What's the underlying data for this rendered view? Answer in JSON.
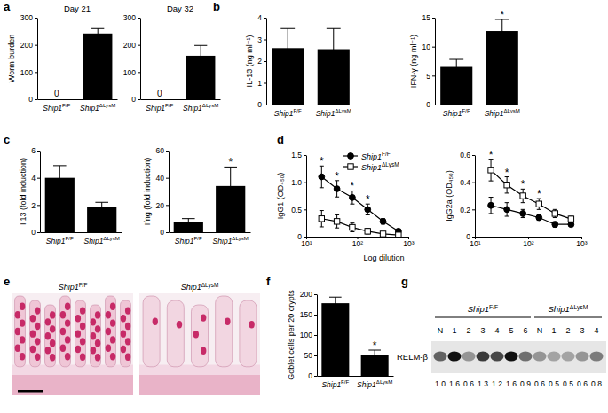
{
  "chart_data": [
    {
      "type": "bar",
      "title": "Day 21",
      "ylabel": "Worm burden",
      "categories": [
        "Ship1F/F",
        "Ship1ΔLysM"
      ],
      "values": [
        0,
        242
      ],
      "errors": [
        null,
        18
      ],
      "data_labels": true,
      "value_labels": [
        "0",
        null
      ],
      "color": "#000000",
      "ylim": [
        0,
        300
      ],
      "yticks": [
        0,
        100,
        200,
        300
      ]
    },
    {
      "type": "bar",
      "title": "Day 32",
      "categories": [
        "Ship1F/F",
        "Ship1ΔLysM"
      ],
      "values": [
        0,
        160
      ],
      "errors": [
        null,
        38
      ],
      "data_labels": true,
      "value_labels": [
        "0",
        null
      ],
      "color": "#000000",
      "ylim": [
        0,
        300
      ],
      "yticks": [
        0,
        100,
        200,
        300
      ]
    },
    {
      "type": "bar",
      "ylabel": "IL-13 (ng ml⁻¹)",
      "categories": [
        "Ship1F/F",
        "Ship1ΔLysM"
      ],
      "values": [
        2.6,
        2.55
      ],
      "errors": [
        0.9,
        0.95
      ],
      "color": "#000000",
      "ylim": [
        0,
        4
      ],
      "yticks": [
        0,
        1,
        2,
        3,
        4
      ]
    },
    {
      "type": "bar",
      "ylabel": "IFN-γ (ng ml⁻¹)",
      "categories": [
        "Ship1F/F",
        "Ship1ΔLysM"
      ],
      "values": [
        6.5,
        12.7
      ],
      "errors": [
        1.3,
        2.0
      ],
      "color": "#000000",
      "ylim": [
        0,
        15
      ],
      "yticks": [
        0,
        5,
        10,
        15
      ],
      "annotations": [
        {
          "text": "*",
          "category": 1
        }
      ]
    },
    {
      "type": "bar",
      "ylabel": "Il13 (fold induction)",
      "categories": [
        "Ship1F/F",
        "Ship1ΔLysM"
      ],
      "values": [
        4.0,
        1.85
      ],
      "errors": [
        0.9,
        0.35
      ],
      "color": "#000000",
      "ylim": [
        0,
        6
      ],
      "yticks": [
        0,
        2,
        4,
        6
      ]
    },
    {
      "type": "bar",
      "ylabel": "Ifng (fold induction)",
      "categories": [
        "Ship1F/F",
        "Ship1ΔLysM"
      ],
      "values": [
        7.5,
        34
      ],
      "errors": [
        2.5,
        14
      ],
      "color": "#000000",
      "ylim": [
        0,
        60
      ],
      "yticks": [
        0,
        20,
        40,
        60
      ],
      "annotations": [
        {
          "text": "*",
          "category": 1
        }
      ]
    },
    {
      "type": "line",
      "ylabel": "IgG1 (OD₄₅₀)",
      "xlabel": "Log dilution",
      "log": "x",
      "x": [
        20,
        40,
        80,
        160,
        320,
        640
      ],
      "xlim": [
        10,
        1000
      ],
      "xticks": [
        {
          "value": 10,
          "label": "10¹"
        },
        {
          "value": 100,
          "label": "10²"
        },
        {
          "value": 1000,
          "label": "10³"
        }
      ],
      "ylim": [
        0,
        1.5
      ],
      "yticks": [
        0,
        0.5,
        {
          "value": 1,
          "label": "1.0"
        },
        1.5
      ],
      "legend": "top",
      "series": [
        {
          "name": "Ship1F/F",
          "color": "#000000",
          "marker": "circle",
          "values": [
            1.1,
            0.88,
            0.72,
            0.5,
            0.28,
            0.1
          ],
          "errors": [
            0.2,
            0.15,
            0.12,
            0.1,
            0.05,
            0.03
          ]
        },
        {
          "name": "Ship1ΔLysM",
          "color": "#000000",
          "marker": "square-open",
          "values": [
            0.33,
            0.28,
            0.17,
            0.1,
            0.05,
            0.03
          ],
          "errors": [
            0.15,
            0.12,
            0.08,
            0.05,
            0.03,
            0.02
          ]
        }
      ],
      "annotations": [
        {
          "text": "*",
          "x": 20
        },
        {
          "text": "*",
          "x": 40
        },
        {
          "text": "*",
          "x": 80
        },
        {
          "text": "*",
          "x": 160
        }
      ]
    },
    {
      "type": "line",
      "ylabel": "IgG2a (OD₄₅₀)",
      "log": "x",
      "x": [
        20,
        40,
        80,
        160,
        320,
        640
      ],
      "xlim": [
        10,
        1000
      ],
      "xticks": [
        {
          "value": 10,
          "label": "10¹"
        },
        {
          "value": 100,
          "label": "10²"
        },
        {
          "value": 1000,
          "label": "10³"
        }
      ],
      "ylim": [
        0,
        0.6
      ],
      "yticks": [
        0,
        0.2,
        0.4,
        0.6
      ],
      "series": [
        {
          "color": "#000000",
          "marker": "circle",
          "values": [
            0.23,
            0.2,
            0.17,
            0.14,
            0.09,
            0.09
          ],
          "errors": [
            0.06,
            0.05,
            0.03,
            0.02,
            0.02,
            0.01
          ]
        },
        {
          "color": "#000000",
          "marker": "square-open",
          "values": [
            0.49,
            0.38,
            0.3,
            0.24,
            0.17,
            0.13
          ],
          "errors": [
            0.08,
            0.06,
            0.05,
            0.04,
            0.03,
            0.02
          ]
        }
      ],
      "annotations": [
        {
          "text": "*",
          "x": 20
        },
        {
          "text": "*",
          "x": 40
        },
        {
          "text": "*",
          "x": 80
        },
        {
          "text": "*",
          "x": 160
        }
      ]
    },
    {
      "type": "bar",
      "ylabel": "Goblet cells per 20 crypts",
      "categories": [
        "Ship1F/F",
        "Ship1ΔLysM"
      ],
      "values": [
        178,
        50
      ],
      "errors": [
        15,
        13
      ],
      "color": "#000000",
      "ylim": [
        0,
        200
      ],
      "yticks": [
        0,
        50,
        100,
        150,
        200
      ],
      "annotations": [
        {
          "text": "*",
          "category": 1
        }
      ]
    }
  ],
  "panel_labels": [
    "a",
    "b",
    "c",
    "d",
    "e",
    "f",
    "g"
  ],
  "histology": {
    "images": [
      {
        "label": "Ship1F/F"
      },
      {
        "label": "Ship1ΔLysM"
      }
    ]
  },
  "blot": {
    "protein": "RELM-β",
    "groups": [
      {
        "name": "Ship1F/F",
        "lanes": [
          "N",
          "1",
          "2",
          "3",
          "4",
          "5",
          "6"
        ],
        "values": [
          1.0,
          1.6,
          0.6,
          1.3,
          1.2,
          1.6,
          0.9
        ],
        "value_labels": [
          "1.0",
          "1.6",
          "0.6",
          "1.3",
          "1.2",
          "1.6",
          "0.9"
        ]
      },
      {
        "name": "Ship1ΔLysM",
        "lanes": [
          "N",
          "1",
          "2",
          "3",
          "4"
        ],
        "values": [
          0.6,
          0.5,
          0.5,
          0.6,
          0.8
        ],
        "value_labels": [
          "0.6",
          "0.5",
          "0.5",
          "0.6",
          "0.8"
        ]
      }
    ]
  }
}
